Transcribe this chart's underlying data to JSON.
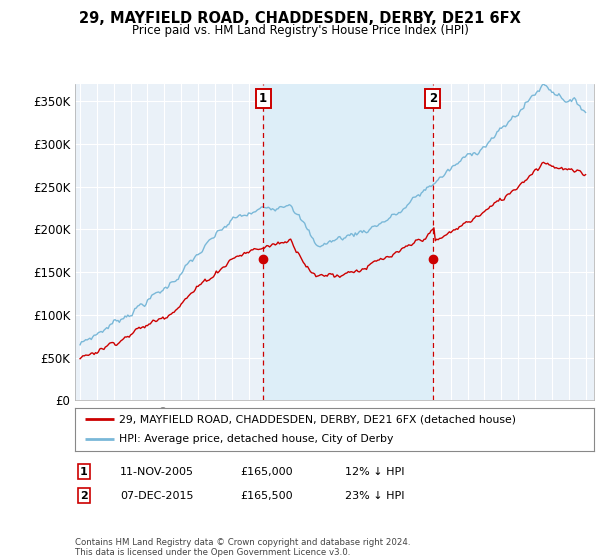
{
  "title": "29, MAYFIELD ROAD, CHADDESDEN, DERBY, DE21 6FX",
  "subtitle": "Price paid vs. HM Land Registry's House Price Index (HPI)",
  "ylabel_ticks": [
    "£0",
    "£50K",
    "£100K",
    "£150K",
    "£200K",
    "£250K",
    "£300K",
    "£350K"
  ],
  "ytick_values": [
    0,
    50000,
    100000,
    150000,
    200000,
    250000,
    300000,
    350000
  ],
  "ylim": [
    0,
    370000
  ],
  "legend_line1": "29, MAYFIELD ROAD, CHADDESDEN, DERBY, DE21 6FX (detached house)",
  "legend_line2": "HPI: Average price, detached house, City of Derby",
  "sale1_date": "11-NOV-2005",
  "sale1_price": "£165,000",
  "sale1_pct": "12% ↓ HPI",
  "sale2_date": "07-DEC-2015",
  "sale2_price": "£165,500",
  "sale2_pct": "23% ↓ HPI",
  "footer": "Contains HM Land Registry data © Crown copyright and database right 2024.\nThis data is licensed under the Open Government Licence v3.0.",
  "hpi_color": "#7ab8d8",
  "price_color": "#cc0000",
  "marker_color": "#cc0000",
  "background_color": "#eaf1f8",
  "shade_color": "#ddeef8",
  "sale1_x_year": 2005.87,
  "sale2_x_year": 2015.93,
  "sale1_price_val": 165000,
  "sale2_price_val": 165500,
  "xlim_left": 1994.7,
  "xlim_right": 2025.5
}
